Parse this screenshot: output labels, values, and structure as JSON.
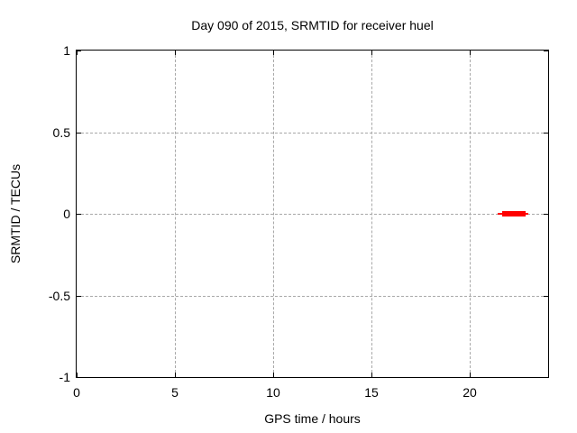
{
  "chart_data": {
    "type": "line",
    "title": "Day 090 of 2015, SRMTID for receiver huel",
    "xlabel": "GPS time / hours",
    "ylabel": "SRMTID / TECUs",
    "xlim": [
      0,
      24
    ],
    "ylim": [
      -1,
      1
    ],
    "xticks": [
      {
        "value": 0,
        "label": "0"
      },
      {
        "value": 5,
        "label": "5"
      },
      {
        "value": 10,
        "label": "10"
      },
      {
        "value": 15,
        "label": "15"
      },
      {
        "value": 20,
        "label": "20"
      }
    ],
    "yticks": [
      {
        "value": 1,
        "label": "1"
      },
      {
        "value": 0.5,
        "label": "0.5"
      },
      {
        "value": 0,
        "label": "0"
      },
      {
        "value": -0.5,
        "label": "-0.5"
      },
      {
        "value": -1,
        "label": "-1"
      }
    ],
    "grid": true,
    "legend_position": "none",
    "colors": {
      "background": "#ffffff",
      "border": "#000000",
      "grid": "#a8a8a8",
      "text": "#000000",
      "series": "#ff0000"
    },
    "series": [
      {
        "name": "SRMTID",
        "shape": "horizontal-segment",
        "color": "#ff0000",
        "y": 0,
        "x_start": 21.45,
        "x_end": 23.0,
        "thick_x_start": 21.65,
        "thick_x_end": 22.85
      }
    ]
  }
}
